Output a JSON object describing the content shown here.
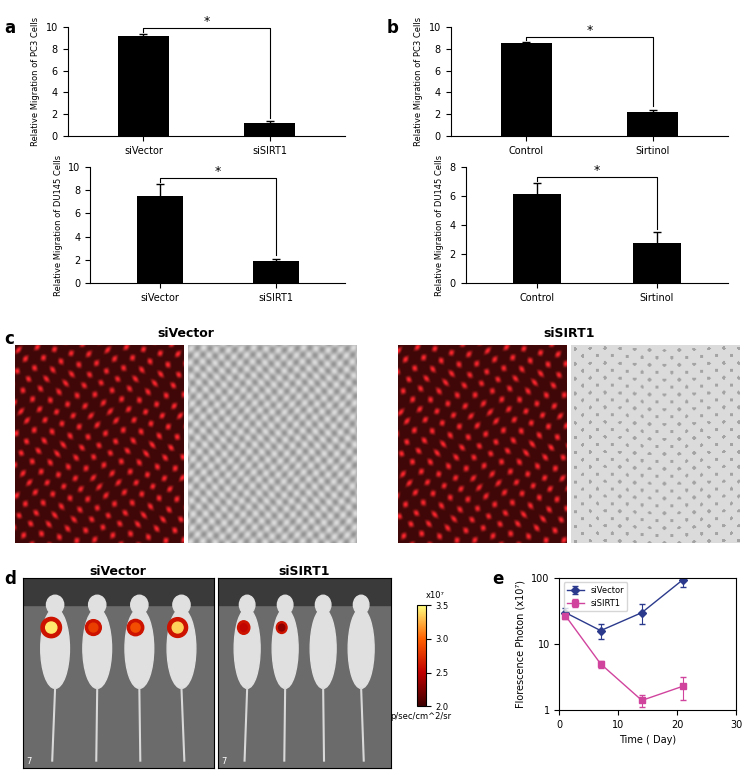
{
  "chart_data": [
    {
      "panel": "a",
      "type": "bar",
      "categories": [
        "siVector",
        "siSIRT1"
      ],
      "values": [
        9.2,
        1.2
      ],
      "errors": [
        0.2,
        0.15
      ],
      "color": "#000000",
      "y_label": "Relative Migration of PC3 Cells",
      "ylim": [
        0,
        10
      ],
      "yticks": [
        0,
        2,
        4,
        6,
        8,
        10
      ],
      "significance": "*"
    },
    {
      "type": "bar",
      "categories": [
        "siVector",
        "siSIRT1"
      ],
      "values": [
        7.5,
        1.9
      ],
      "errors": [
        1.0,
        0.2
      ],
      "color": "#000000",
      "y_label": "Relative Migration of DU145 Cells",
      "ylim": [
        0,
        10
      ],
      "yticks": [
        0,
        2,
        4,
        6,
        8,
        10
      ],
      "significance": "*"
    },
    {
      "panel": "b",
      "type": "bar",
      "categories": [
        "Control",
        "Sirtinol"
      ],
      "values": [
        8.5,
        2.2
      ],
      "errors": [
        0.1,
        0.2
      ],
      "color": "#000000",
      "y_label": "Relative Migration of PC3 Cells",
      "ylim": [
        0,
        10
      ],
      "yticks": [
        0,
        2,
        4,
        6,
        8,
        10
      ],
      "significance": "*"
    },
    {
      "type": "bar",
      "categories": [
        "Control",
        "Sirtinol"
      ],
      "values": [
        6.1,
        2.8
      ],
      "errors": [
        0.8,
        0.7
      ],
      "color": "#000000",
      "y_label": "Relative Migration of DU145 Cells",
      "ylim": [
        0,
        8
      ],
      "yticks": [
        0,
        2,
        4,
        6,
        8
      ],
      "significance": "*"
    },
    {
      "panel": "e",
      "type": "line",
      "x": [
        1,
        7,
        14,
        21
      ],
      "x_label": "Time ( Day)",
      "y_label": "Florescence Photon (x10⁷)",
      "xlim": [
        0,
        30
      ],
      "xticks": [
        0,
        10,
        20,
        30
      ],
      "ylim": [
        1,
        100
      ],
      "yticks": [
        1,
        10,
        100
      ],
      "log": "y",
      "legend": "upper left",
      "series": [
        {
          "name": "siVector",
          "color": "#2b3a8c",
          "marker": "diamond",
          "values": [
            30,
            16,
            30,
            95
          ],
          "errors": [
            5,
            4,
            10,
            22
          ]
        },
        {
          "name": "siSIRT1",
          "color": "#d1449e",
          "marker": "square",
          "values": [
            27,
            5,
            1.4,
            2.3
          ],
          "errors": [
            3,
            0.6,
            0.3,
            0.9
          ]
        }
      ]
    }
  ],
  "image_panels": [
    {
      "panel": "c",
      "type": "image",
      "groups": [
        "siVector",
        "siSIRT1"
      ]
    },
    {
      "panel": "d",
      "type": "image",
      "groups": [
        "siVector",
        "siSIRT1"
      ],
      "corner_label": "7",
      "colorbar": {
        "range": [
          2.0,
          3.5
        ],
        "ticks": [
          {
            "value": 2,
            "label": "2.0"
          },
          2.5,
          {
            "value": 3,
            "label": "3.0"
          },
          3.5
        ],
        "multiplier": "x10⁷",
        "label": "p/sec/cm^2/sr",
        "colors": [
          "#3d0000",
          "#c00000",
          "#ff6000",
          "#ffff80"
        ]
      }
    }
  ]
}
